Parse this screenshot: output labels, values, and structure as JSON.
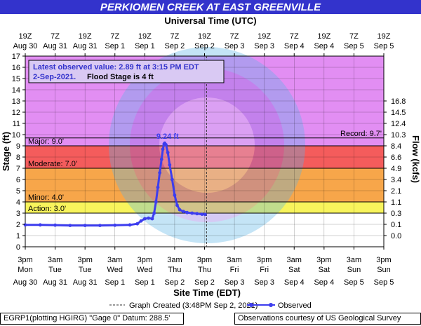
{
  "header": {
    "title": "PERKIOMEN CREEK AT EAST GREENVILLE",
    "top_axis_title": "Universal Time (UTC)"
  },
  "info_box": {
    "line1": "Latest observed value: 2.89 ft at 3:15 PM EDT",
    "line2a": "2-Sep-2021.",
    "line2b": "Flood Stage is 4 ft"
  },
  "legend": {
    "created": "Graph Created (3:48PM Sep 2, 2021)",
    "observed": "Observed"
  },
  "footer": {
    "left": "EGRP1(plotting HGIRG) \"Gage 0\" Datum: 288.5'",
    "right": "Observations courtesy of US Geological Survey"
  },
  "colors": {
    "title_bg": "#3333cc",
    "above_record": "#e28ef3",
    "major": "#f45c5c",
    "moderate": "#f7a64a",
    "minor": "#f8f45c",
    "series": "#3d3dee"
  },
  "chart_data": {
    "type": "line",
    "title": "PERKIOMEN CREEK AT EAST GREENVILLE",
    "xlabel": "Site Time (EDT)",
    "ylabel": "Stage (ft)",
    "y2label": "Flow (kcfs)",
    "ylim": [
      0,
      17
    ],
    "y_ticks": [
      0,
      1,
      2,
      3,
      4,
      5,
      6,
      7,
      8,
      9,
      10,
      11,
      12,
      13,
      14,
      15,
      16,
      17
    ],
    "xlim": [
      "2021-08-30 15:00",
      "2021-09-05 15:00"
    ],
    "x_ticks_bottom": [
      {
        "time": "3pm",
        "date": "Mon"
      },
      {
        "time": "3am",
        "date": "Tue"
      },
      {
        "time": "3pm",
        "date": "Tue"
      },
      {
        "time": "3am",
        "date": "Wed"
      },
      {
        "time": "3pm",
        "date": "Wed"
      },
      {
        "time": "3am",
        "date": "Thu"
      },
      {
        "time": "3pm",
        "date": "Thu"
      },
      {
        "time": "3am",
        "date": "Fri"
      },
      {
        "time": "3pm",
        "date": "Fri"
      },
      {
        "time": "3am",
        "date": "Sat"
      },
      {
        "time": "3pm",
        "date": "Sat"
      },
      {
        "time": "3am",
        "date": "Sun"
      },
      {
        "time": "3pm",
        "date": "Sun"
      }
    ],
    "x_ticks_bottom_dates": [
      "Aug 30",
      "Aug 31",
      "Aug 31",
      "Sep 1",
      "Sep 1",
      "Sep 2",
      "Sep 2",
      "Sep 3",
      "Sep 3",
      "Sep 4",
      "Sep 4",
      "Sep 5",
      "Sep 5"
    ],
    "x_ticks_top": [
      {
        "time": "19Z",
        "date": "Aug 30"
      },
      {
        "time": "7Z",
        "date": "Aug 31"
      },
      {
        "time": "19Z",
        "date": "Aug 31"
      },
      {
        "time": "7Z",
        "date": "Sep 1"
      },
      {
        "time": "19Z",
        "date": "Sep 1"
      },
      {
        "time": "7Z",
        "date": "Sep 2"
      },
      {
        "time": "19Z",
        "date": "Sep 2"
      },
      {
        "time": "7Z",
        "date": "Sep 3"
      },
      {
        "time": "19Z",
        "date": "Sep 3"
      },
      {
        "time": "7Z",
        "date": "Sep 4"
      },
      {
        "time": "19Z",
        "date": "Sep 4"
      },
      {
        "time": "7Z",
        "date": "Sep 5"
      },
      {
        "time": "19Z",
        "date": "Sep 5"
      }
    ],
    "flow_ticks": [
      {
        "stage": 1,
        "label": "0.0"
      },
      {
        "stage": 2,
        "label": "0.1"
      },
      {
        "stage": 3,
        "label": "0.3"
      },
      {
        "stage": 4,
        "label": "1.1"
      },
      {
        "stage": 5,
        "label": "2.1"
      },
      {
        "stage": 6,
        "label": "3.4"
      },
      {
        "stage": 7,
        "label": "4.9"
      },
      {
        "stage": 8,
        "label": "6.6"
      },
      {
        "stage": 9,
        "label": "8.4"
      },
      {
        "stage": 10,
        "label": "10.3"
      },
      {
        "stage": 11,
        "label": "12.4"
      },
      {
        "stage": 12,
        "label": "14.5"
      },
      {
        "stage": 13,
        "label": "16.8"
      }
    ],
    "flood_categories": [
      {
        "name": "Action",
        "stage": 3.0,
        "label": "Action: 3.0'"
      },
      {
        "name": "Minor",
        "stage": 4.0,
        "label": "Minor: 4.0'"
      },
      {
        "name": "Moderate",
        "stage": 7.0,
        "label": "Moderate: 7.0'"
      },
      {
        "name": "Major",
        "stage": 9.0,
        "label": "Major: 9.0'"
      },
      {
        "name": "Record",
        "stage": 9.7,
        "label": "Record: 9.7'"
      }
    ],
    "peak": {
      "x": "2021-09-01 23:00",
      "y": 9.24,
      "label": "9.24 ft"
    },
    "created_at": "2021-09-02 15:48",
    "series": [
      {
        "name": "Observed",
        "points": [
          [
            "2021-08-30 15:00",
            1.95
          ],
          [
            "2021-08-30 21:00",
            1.95
          ],
          [
            "2021-08-31 03:00",
            1.93
          ],
          [
            "2021-08-31 09:00",
            1.9
          ],
          [
            "2021-08-31 15:00",
            1.9
          ],
          [
            "2021-08-31 21:00",
            1.9
          ],
          [
            "2021-09-01 03:00",
            1.92
          ],
          [
            "2021-09-01 09:00",
            1.95
          ],
          [
            "2021-09-01 12:00",
            2.05
          ],
          [
            "2021-09-01 13:30",
            2.3
          ],
          [
            "2021-09-01 15:00",
            2.5
          ],
          [
            "2021-09-01 16:30",
            2.55
          ],
          [
            "2021-09-01 18:00",
            2.5
          ],
          [
            "2021-09-01 18:45",
            3.0
          ],
          [
            "2021-09-01 19:30",
            4.0
          ],
          [
            "2021-09-01 20:15",
            5.3
          ],
          [
            "2021-09-01 21:00",
            6.6
          ],
          [
            "2021-09-01 21:45",
            7.8
          ],
          [
            "2021-09-01 22:15",
            8.7
          ],
          [
            "2021-09-01 22:45",
            9.15
          ],
          [
            "2021-09-01 23:00",
            9.24
          ],
          [
            "2021-09-01 23:30",
            9.1
          ],
          [
            "2021-09-02 00:15",
            8.4
          ],
          [
            "2021-09-02 01:00",
            7.3
          ],
          [
            "2021-09-02 02:00",
            6.0
          ],
          [
            "2021-09-02 03:00",
            4.6
          ],
          [
            "2021-09-02 04:00",
            3.7
          ],
          [
            "2021-09-02 05:00",
            3.3
          ],
          [
            "2021-09-02 06:30",
            3.15
          ],
          [
            "2021-09-02 08:00",
            3.05
          ],
          [
            "2021-09-02 10:00",
            3.0
          ],
          [
            "2021-09-02 12:00",
            2.95
          ],
          [
            "2021-09-02 14:00",
            2.9
          ],
          [
            "2021-09-02 15:15",
            2.89
          ]
        ]
      }
    ]
  }
}
